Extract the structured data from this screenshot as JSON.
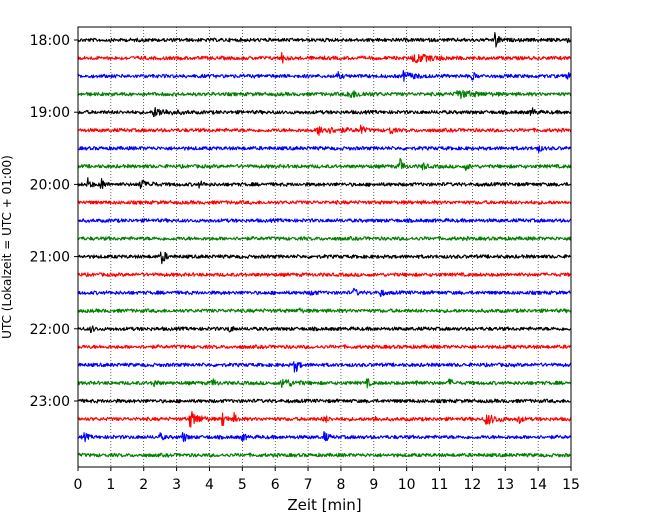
{
  "chart_data": {
    "type": "line",
    "title": "",
    "xlabel": "Zeit  [min]",
    "ylabel": "UTC (Lokalzeit = UTC + 01:00)",
    "xlim": [
      0,
      15
    ],
    "x_ticks": [
      0,
      1,
      2,
      3,
      4,
      5,
      6,
      7,
      8,
      9,
      10,
      11,
      12,
      13,
      14,
      15
    ],
    "y_tick_labels": [
      "18:00",
      "19:00",
      "20:00",
      "21:00",
      "22:00",
      "23:00"
    ],
    "rows": [
      "18:00",
      "18:15",
      "18:30",
      "18:45",
      "19:00",
      "19:15",
      "19:30",
      "19:45",
      "20:00",
      "20:15",
      "20:30",
      "20:45",
      "21:00",
      "21:15",
      "21:30",
      "21:45",
      "22:00",
      "22:15",
      "22:30",
      "22:45",
      "23:00",
      "23:15",
      "23:30",
      "23:45"
    ],
    "row_colors": [
      "#000000",
      "#ff0000",
      "#0000ff",
      "#008000"
    ],
    "grid": {
      "x": true,
      "y": false,
      "style": "dotted"
    },
    "events": [
      {
        "row": 0,
        "t": 12.7,
        "amp": 1.0
      },
      {
        "row": 0,
        "t": 14.8,
        "amp": 0.4
      },
      {
        "row": 1,
        "t": 6.2,
        "amp": 0.6
      },
      {
        "row": 1,
        "t": 10.2,
        "amp": 0.5,
        "dur": 1.4
      },
      {
        "row": 2,
        "t": 7.9,
        "amp": 0.35
      },
      {
        "row": 2,
        "t": 9.9,
        "amp": 0.45,
        "dur": 0.8
      },
      {
        "row": 2,
        "t": 12.0,
        "amp": 0.4
      },
      {
        "row": 2,
        "t": 14.9,
        "amp": 0.35
      },
      {
        "row": 3,
        "t": 8.2,
        "amp": 0.4,
        "dur": 1.2
      },
      {
        "row": 3,
        "t": 11.5,
        "amp": 0.45,
        "dur": 1.4
      },
      {
        "row": 4,
        "t": 2.3,
        "amp": 0.45,
        "dur": 1.2
      },
      {
        "row": 4,
        "t": 13.8,
        "amp": 0.55
      },
      {
        "row": 5,
        "t": 7.3,
        "amp": 0.45,
        "dur": 1.5
      },
      {
        "row": 5,
        "t": 8.6,
        "amp": 0.5
      },
      {
        "row": 5,
        "t": 9.5,
        "amp": 0.45
      },
      {
        "row": 6,
        "t": 14.0,
        "amp": 0.4
      },
      {
        "row": 7,
        "t": 9.8,
        "amp": 0.85
      },
      {
        "row": 7,
        "t": 10.5,
        "amp": 0.4
      },
      {
        "row": 7,
        "t": 11.8,
        "amp": 0.35
      },
      {
        "row": 8,
        "t": 0.3,
        "amp": 0.6
      },
      {
        "row": 8,
        "t": 0.7,
        "amp": 0.75
      },
      {
        "row": 8,
        "t": 1.9,
        "amp": 0.95
      },
      {
        "row": 8,
        "t": 2.2,
        "amp": 0.4
      },
      {
        "row": 8,
        "t": 3.7,
        "amp": 0.35
      },
      {
        "row": 12,
        "t": 2.55,
        "amp": 1.0
      },
      {
        "row": 14,
        "t": 7.1,
        "amp": 0.35
      },
      {
        "row": 14,
        "t": 8.4,
        "amp": 0.45
      },
      {
        "row": 14,
        "t": 9.2,
        "amp": 0.4
      },
      {
        "row": 15,
        "t": 6.7,
        "amp": 0.3
      },
      {
        "row": 16,
        "t": 0.4,
        "amp": 0.35
      },
      {
        "row": 16,
        "t": 4.6,
        "amp": 0.35
      },
      {
        "row": 18,
        "t": 6.6,
        "amp": 1.0
      },
      {
        "row": 19,
        "t": 2.3,
        "amp": 0.45
      },
      {
        "row": 19,
        "t": 4.1,
        "amp": 0.45
      },
      {
        "row": 19,
        "t": 6.2,
        "amp": 0.5,
        "dur": 0.9
      },
      {
        "row": 19,
        "t": 8.8,
        "amp": 0.4
      },
      {
        "row": 19,
        "t": 10.3,
        "amp": 0.35
      },
      {
        "row": 19,
        "t": 11.3,
        "amp": 0.4
      },
      {
        "row": 21,
        "t": 3.4,
        "amp": 0.9,
        "dur": 0.7
      },
      {
        "row": 21,
        "t": 4.4,
        "amp": 0.95
      },
      {
        "row": 21,
        "t": 4.75,
        "amp": 0.55
      },
      {
        "row": 21,
        "t": 7.5,
        "amp": 0.45
      },
      {
        "row": 21,
        "t": 9.0,
        "amp": 0.35
      },
      {
        "row": 21,
        "t": 12.4,
        "amp": 0.6,
        "dur": 0.8
      },
      {
        "row": 21,
        "t": 13.4,
        "amp": 0.5
      },
      {
        "row": 22,
        "t": 0.2,
        "amp": 0.45
      },
      {
        "row": 22,
        "t": 2.5,
        "amp": 0.35
      },
      {
        "row": 22,
        "t": 3.2,
        "amp": 0.6
      },
      {
        "row": 22,
        "t": 5.0,
        "amp": 0.4
      },
      {
        "row": 22,
        "t": 7.5,
        "amp": 0.65
      }
    ]
  }
}
